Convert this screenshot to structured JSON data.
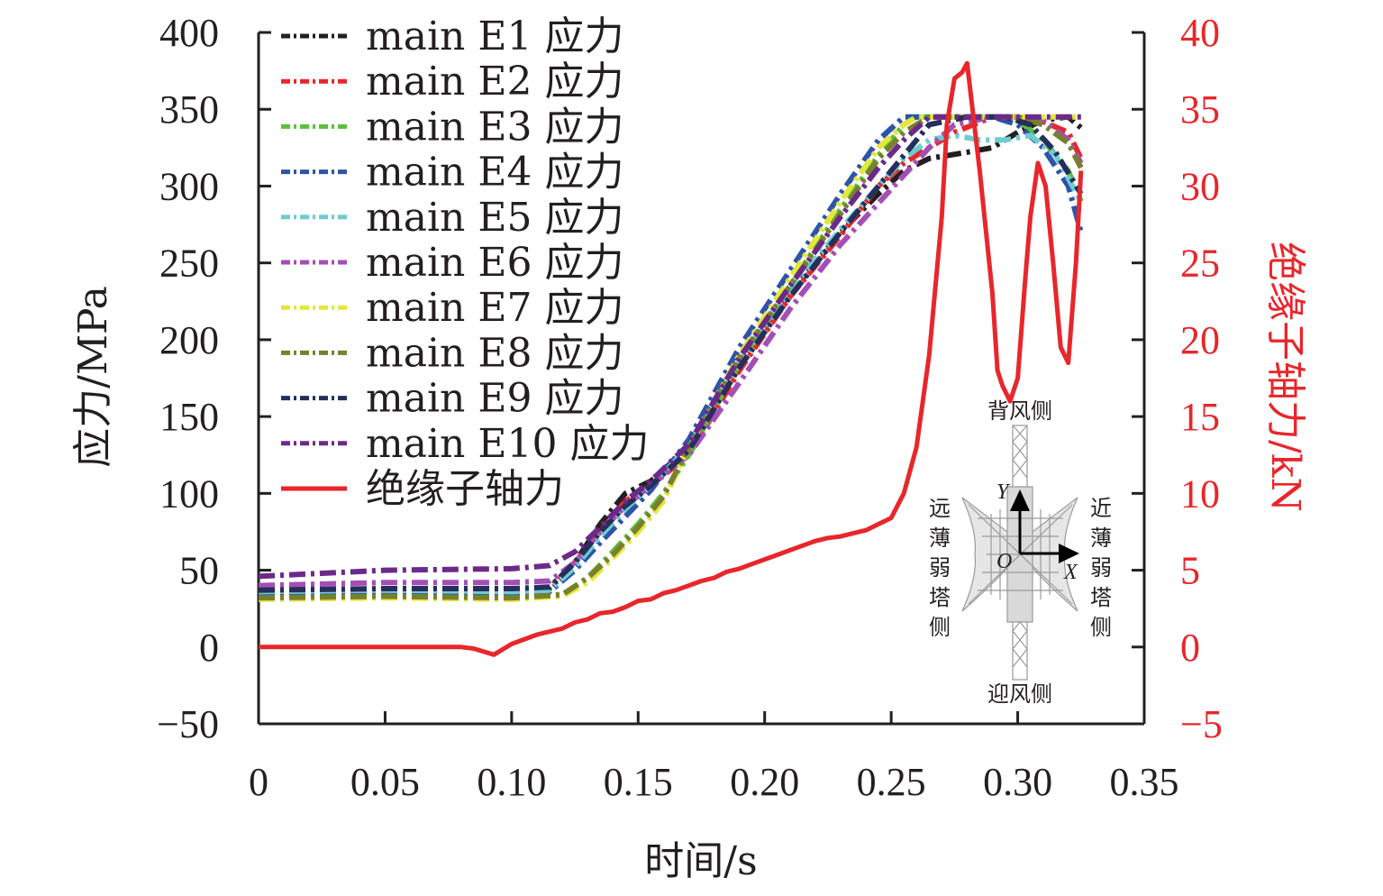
{
  "chart_data": {
    "type": "line",
    "title": "",
    "xlabel": "时间/s",
    "ylabel": "应力/MPa",
    "y2label": "绝缘子轴力/kN",
    "xlim": [
      0,
      0.35
    ],
    "ylim": [
      -50,
      400
    ],
    "y2lim": [
      -5,
      40
    ],
    "x_ticks": [
      "0",
      "0.05",
      "0.10",
      "0.15",
      "0.20",
      "0.25",
      "0.30",
      "0.35"
    ],
    "x_tick_values": [
      0,
      0.05,
      0.1,
      0.15,
      0.2,
      0.25,
      0.3,
      0.35
    ],
    "y_ticks": [
      "400",
      "350",
      "300",
      "250",
      "200",
      "150",
      "100",
      "50",
      "0",
      "−50"
    ],
    "y_tick_values": [
      400,
      350,
      300,
      250,
      200,
      150,
      100,
      50,
      0,
      -50
    ],
    "y2_ticks": [
      "40",
      "35",
      "30",
      "25",
      "20",
      "15",
      "10",
      "5",
      "0",
      "−5"
    ],
    "y2_tick_values": [
      40,
      35,
      30,
      25,
      20,
      15,
      10,
      5,
      0,
      -5
    ],
    "grid": false,
    "legend_position": "top-left",
    "series": [
      {
        "name": "main E1 应力",
        "axis": "left",
        "style": "dashdot",
        "color": "#231f20",
        "x": [
          0,
          0.05,
          0.1,
          0.115,
          0.125,
          0.135,
          0.145,
          0.155,
          0.17,
          0.19,
          0.21,
          0.23,
          0.245,
          0.255,
          0.265,
          0.28,
          0.29,
          0.3,
          0.31,
          0.32,
          0.325
        ],
        "y": [
          35,
          37,
          37,
          38,
          55,
          80,
          100,
          108,
          130,
          185,
          230,
          270,
          295,
          310,
          318,
          322,
          325,
          335,
          343,
          345,
          338
        ]
      },
      {
        "name": "main E2 应力",
        "axis": "left",
        "style": "dashdot",
        "color": "#e8262b",
        "x": [
          0,
          0.05,
          0.1,
          0.115,
          0.125,
          0.135,
          0.145,
          0.155,
          0.17,
          0.19,
          0.21,
          0.23,
          0.245,
          0.255,
          0.265,
          0.275,
          0.29,
          0.3,
          0.31,
          0.32,
          0.325
        ],
        "y": [
          36,
          36,
          35,
          36,
          55,
          75,
          95,
          105,
          125,
          180,
          228,
          268,
          300,
          315,
          325,
          335,
          345,
          345,
          342,
          335,
          318
        ]
      },
      {
        "name": "main E3 应力",
        "axis": "left",
        "style": "dashdot",
        "color": "#5cbf3a",
        "x": [
          0,
          0.05,
          0.1,
          0.12,
          0.13,
          0.14,
          0.15,
          0.16,
          0.17,
          0.19,
          0.21,
          0.23,
          0.245,
          0.255,
          0.26,
          0.29,
          0.3,
          0.31,
          0.32,
          0.325
        ],
        "y": [
          33,
          34,
          33,
          34,
          45,
          62,
          80,
          100,
          125,
          185,
          235,
          285,
          320,
          340,
          345,
          345,
          343,
          330,
          310,
          290
        ]
      },
      {
        "name": "main E4 应力",
        "axis": "left",
        "style": "dashdot",
        "color": "#2e53a8",
        "x": [
          0,
          0.05,
          0.1,
          0.115,
          0.125,
          0.135,
          0.145,
          0.155,
          0.17,
          0.19,
          0.21,
          0.23,
          0.245,
          0.255,
          0.29,
          0.3,
          0.31,
          0.32,
          0.325
        ],
        "y": [
          35,
          36,
          35,
          36,
          50,
          68,
          85,
          102,
          135,
          195,
          245,
          295,
          330,
          345,
          345,
          340,
          325,
          300,
          270
        ]
      },
      {
        "name": "main E5 应力",
        "axis": "left",
        "style": "dashdot",
        "color": "#6dcdd1",
        "x": [
          0,
          0.05,
          0.1,
          0.115,
          0.125,
          0.135,
          0.145,
          0.155,
          0.17,
          0.19,
          0.21,
          0.23,
          0.245,
          0.255,
          0.265,
          0.275,
          0.285,
          0.295,
          0.305,
          0.315,
          0.325
        ],
        "y": [
          36,
          37,
          36,
          37,
          52,
          72,
          90,
          105,
          130,
          185,
          232,
          272,
          300,
          318,
          330,
          333,
          330,
          330,
          333,
          320,
          290
        ]
      },
      {
        "name": "main E6 应力",
        "axis": "left",
        "style": "dashdot",
        "color": "#a34fb5",
        "x": [
          0,
          0.05,
          0.1,
          0.115,
          0.125,
          0.135,
          0.145,
          0.155,
          0.17,
          0.19,
          0.21,
          0.23,
          0.25,
          0.265,
          0.275,
          0.29,
          0.3,
          0.31,
          0.32,
          0.325
        ],
        "y": [
          40,
          42,
          42,
          43,
          55,
          75,
          92,
          105,
          125,
          172,
          220,
          262,
          298,
          325,
          340,
          345,
          345,
          343,
          330,
          315
        ]
      },
      {
        "name": "main E7 应力",
        "axis": "left",
        "style": "dashdot",
        "color": "#e3e83a",
        "x": [
          0,
          0.05,
          0.1,
          0.12,
          0.13,
          0.14,
          0.15,
          0.16,
          0.17,
          0.19,
          0.21,
          0.23,
          0.245,
          0.255,
          0.26,
          0.325
        ],
        "y": [
          31,
          32,
          31,
          33,
          42,
          58,
          75,
          95,
          130,
          190,
          240,
          290,
          325,
          340,
          345,
          345
        ]
      },
      {
        "name": "main E8 应力",
        "axis": "left",
        "style": "dashdot",
        "color": "#7a7f2e",
        "x": [
          0,
          0.05,
          0.1,
          0.12,
          0.13,
          0.14,
          0.15,
          0.16,
          0.17,
          0.19,
          0.21,
          0.23,
          0.245,
          0.255,
          0.265,
          0.29,
          0.3,
          0.31,
          0.32,
          0.325
        ],
        "y": [
          32,
          33,
          32,
          34,
          45,
          60,
          78,
          98,
          130,
          188,
          235,
          282,
          318,
          335,
          345,
          345,
          345,
          340,
          328,
          312
        ]
      },
      {
        "name": "main E9 应力",
        "axis": "left",
        "style": "dashdot",
        "color": "#262e5c",
        "x": [
          0,
          0.05,
          0.1,
          0.115,
          0.125,
          0.135,
          0.145,
          0.155,
          0.17,
          0.19,
          0.21,
          0.23,
          0.245,
          0.255,
          0.265,
          0.28,
          0.295,
          0.305,
          0.315,
          0.325
        ],
        "y": [
          37,
          38,
          38,
          39,
          55,
          75,
          92,
          105,
          128,
          182,
          228,
          270,
          300,
          320,
          340,
          345,
          345,
          340,
          322,
          295
        ]
      },
      {
        "name": "main E10 应力",
        "axis": "left",
        "style": "dashdot",
        "color": "#6b2a8a",
        "x": [
          0,
          0.05,
          0.1,
          0.115,
          0.125,
          0.135,
          0.145,
          0.155,
          0.17,
          0.19,
          0.21,
          0.23,
          0.245,
          0.255,
          0.265,
          0.325
        ],
        "y": [
          46,
          50,
          51,
          53,
          62,
          78,
          95,
          108,
          132,
          188,
          235,
          280,
          312,
          330,
          345,
          345
        ]
      },
      {
        "name": "绝缘子轴力",
        "axis": "right",
        "style": "solid",
        "color": "#e8262b",
        "x": [
          0,
          0.08,
          0.085,
          0.093,
          0.1,
          0.11,
          0.12,
          0.125,
          0.13,
          0.135,
          0.14,
          0.145,
          0.15,
          0.155,
          0.16,
          0.165,
          0.17,
          0.175,
          0.18,
          0.185,
          0.19,
          0.195,
          0.2,
          0.205,
          0.21,
          0.215,
          0.22,
          0.225,
          0.23,
          0.235,
          0.24,
          0.245,
          0.25,
          0.255,
          0.26,
          0.265,
          0.27,
          0.272,
          0.275,
          0.278,
          0.28,
          0.285,
          0.29,
          0.292,
          0.294,
          0.297,
          0.3,
          0.303,
          0.305,
          0.308,
          0.311,
          0.314,
          0.317,
          0.32,
          0.323,
          0.325
        ],
        "y": [
          0,
          0,
          -0.1,
          -0.5,
          0.2,
          0.8,
          1.2,
          1.6,
          1.8,
          2.2,
          2.3,
          2.6,
          3.0,
          3.1,
          3.5,
          3.7,
          4.0,
          4.3,
          4.5,
          4.9,
          5.1,
          5.4,
          5.7,
          6.0,
          6.3,
          6.6,
          6.9,
          7.1,
          7.2,
          7.4,
          7.6,
          8.0,
          8.4,
          10.0,
          13.0,
          19.0,
          28.0,
          34.0,
          37.0,
          37.4,
          38.0,
          31.0,
          23.0,
          18.0,
          17.0,
          16.0,
          17.5,
          24.0,
          28.0,
          31.5,
          30.0,
          25.0,
          19.5,
          18.5,
          25.0,
          31.0
        ]
      }
    ],
    "annotations": [
      {
        "text": "背风侧",
        "position": "inset-top"
      },
      {
        "text": "迎风侧",
        "position": "inset-bottom"
      },
      {
        "text": "远薄弱塔侧",
        "position": "inset-left",
        "orientation": "vertical"
      },
      {
        "text": "近薄弱塔侧",
        "position": "inset-right",
        "orientation": "vertical"
      },
      {
        "text": "Y",
        "position": "inset-axis-y"
      },
      {
        "text": "X",
        "position": "inset-axis-x"
      },
      {
        "text": "O",
        "position": "inset-origin"
      }
    ]
  }
}
